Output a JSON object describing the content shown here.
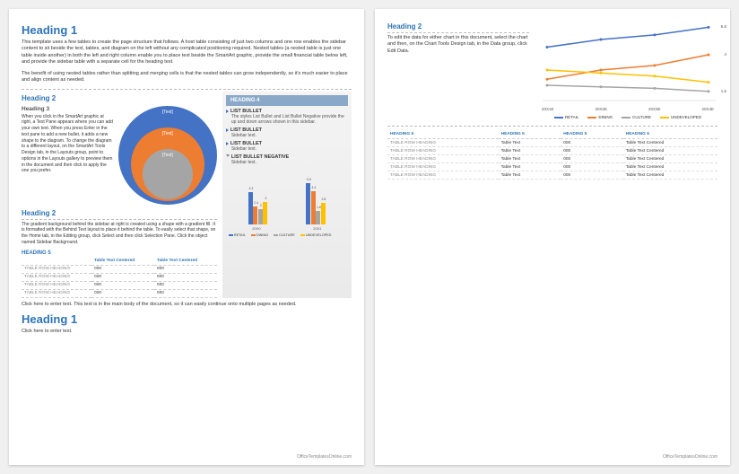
{
  "colors": {
    "blue": "#4472c4",
    "orange": "#ed7d31",
    "gray": "#a5a5a5",
    "yellow": "#ffc000",
    "h_blue": "#2e74b5"
  },
  "page1": {
    "h1_1": "Heading 1",
    "intro": "This template uses a few tables to create the page structure that follows. A host table consisting of just two columns and one row enables the sidebar content to sit beside the text, tables, and diagram on the left without any complicated positioning required. Nested tables (a nested table is just one table inside another) in both the left and right column enable you to place text beside the SmartArt graphic, provide the small financial table below left, and provide the sidebar table with a separate cell for the heading text.",
    "intro2": "The benefit of using nested tables rather than splitting and merging cells is that the nested tables can grow independently, so it's much easier to place and align content as needed.",
    "h2_a": "Heading 2",
    "h3_a": "Heading 3",
    "smartart_para": "When you click in the SmartArt graphic at right, a Text Pane appears where you can add your own text. When you press Enter in the text pane to add a new bullet, it adds a new shape to the diagram. To change the diagram to a different layout, on the SmartArt Tools Design tab, in the Layouts group, point to options in the Layouts gallery to preview them in the document and then click to apply the one you prefer.",
    "h2_b": "Heading 2",
    "grad_para": "The gradient background behind the sidebar at right is created using a shape with a gradient fill. It is formatted with the Behind Text layout to place it behind the table. To easily select that shape, on the Home tab, in the Editing group, click Select and then click Selection Pane. Click the object named Sidebar Background.",
    "h5_a": "HEADING 5",
    "table1": {
      "cols": [
        "",
        "Table Text Centered",
        "Table Text Centered"
      ],
      "rows": [
        [
          "TABLE ROW HEADING",
          "000",
          "000"
        ],
        [
          "TABLE ROW HEADING",
          "000",
          "000"
        ],
        [
          "TABLE ROW HEADING",
          "000",
          "000"
        ],
        [
          "TABLE ROW HEADING",
          "000",
          "000"
        ]
      ]
    },
    "body_text": "Click here to enter text. This text is in the main body of the document, so it can easily continue onto multiple pages as needed.",
    "h1_2": "Heading 1",
    "click_here": "Click here to enter text.",
    "sidebar": {
      "h4": "HEADING 4",
      "lb": "LIST BULLET",
      "lb_sub1": "The styles List Bullet and List Bullet Negative provide the up and down arrows shown in this sidebar.",
      "lb2": "LIST BULLET",
      "lb2_sub": "Sidebar text.",
      "lb3": "LIST BULLET",
      "lb3_sub": "Sidebar text.",
      "lbn": "LIST BULLET NEGATIVE",
      "lbn_sub": "Sidebar text.",
      "chart": {
        "cats": [
          "20X0",
          "20X1"
        ],
        "series": [
          {
            "name": "RETAIL",
            "color": "#4472c4",
            "vals": [
              4.3,
              5.5
            ]
          },
          {
            "name": "DINING",
            "color": "#ed7d31",
            "vals": [
              2.4,
              4.4
            ]
          },
          {
            "name": "CULTURE",
            "color": "#a5a5a5",
            "vals": [
              2.0,
              1.8
            ]
          },
          {
            "name": "UNDEVELOPED",
            "color": "#ffc000",
            "vals": [
              3.0,
              2.8
            ]
          }
        ],
        "ymax": 6
      }
    },
    "smartart_labels": [
      "[Text]",
      "[Text]",
      "[Text]"
    ],
    "footer": "OfficeTemplatesOnline.com"
  },
  "page2": {
    "h2": "Heading 2",
    "para": "To edit the data for either chart in this document, select the chart and then, on the Chart Tools Design tab, in the Data group, click Edit Data.",
    "linechart": {
      "xcats": [
        "20X1E",
        "20X2E",
        "20X3E",
        "20X4E"
      ],
      "series": [
        {
          "name": "RETAIL",
          "color": "#4472c4",
          "vals": [
            4.5,
            5.0,
            5.3,
            5.8
          ]
        },
        {
          "name": "DINING",
          "color": "#ed7d31",
          "vals": [
            2.4,
            3.0,
            3.3,
            4.0
          ]
        },
        {
          "name": "CULTURE",
          "color": "#a5a5a5",
          "vals": [
            2.0,
            1.9,
            1.8,
            1.6
          ]
        },
        {
          "name": "UNDEVELOPED",
          "color": "#ffc000",
          "vals": [
            3.0,
            2.8,
            2.6,
            2.2
          ]
        }
      ],
      "ymin": 1,
      "ymax": 6,
      "rlabels": [
        {
          "y": 5.8,
          "t": "5.8"
        },
        {
          "y": 4.0,
          "t": "4"
        },
        {
          "y": 1.6,
          "t": "1.6"
        }
      ]
    },
    "table": {
      "cols": [
        "HEADING 5",
        "HEADING 5",
        "HEADING 5",
        "HEADING 5"
      ],
      "rows": [
        [
          "TABLE ROW HEADING",
          "Table Text",
          "000",
          "Table Text Centered"
        ],
        [
          "TABLE ROW HEADING",
          "Table Text",
          "000",
          "Table Text Centered"
        ],
        [
          "TABLE ROW HEADING",
          "Table Text",
          "000",
          "Table Text Centered"
        ],
        [
          "TABLE ROW HEADING",
          "Table Text",
          "000",
          "Table Text Centered"
        ],
        [
          "TABLE ROW HEADING",
          "Table Text",
          "000",
          "Table Text Centered"
        ]
      ]
    },
    "footer": "OfficeTemplatesOnline.com"
  }
}
